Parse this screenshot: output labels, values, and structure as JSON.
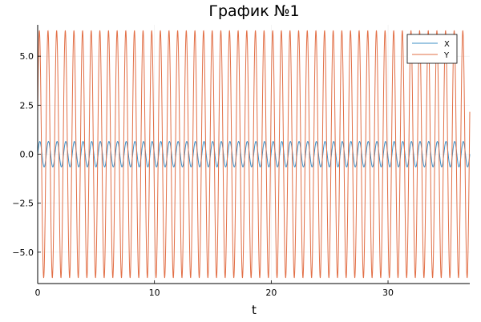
{
  "chart_data": {
    "type": "line",
    "title": "График №1",
    "xlabel": "t",
    "ylabel": "",
    "xlim": [
      0,
      37
    ],
    "ylim": [
      -6.6,
      6.6
    ],
    "xticks": [
      0,
      10,
      20,
      30
    ],
    "xtick_labels": [
      "0",
      "10",
      "20",
      "30"
    ],
    "yticks": [
      -5.0,
      -2.5,
      0.0,
      2.5,
      5.0
    ],
    "ytick_labels": [
      "−5.0",
      "−2.5",
      "0.0",
      "2.5",
      "5.0"
    ],
    "grid": true,
    "legend_position": "top-right",
    "series": [
      {
        "name": "X",
        "color": "#3d8fc6",
        "kind": "sinusoid",
        "amplitude": 0.65,
        "cycles": 50,
        "phase": 0.0,
        "t_start": 0,
        "t_end": 37
      },
      {
        "name": "Y",
        "color": "#e26f46",
        "kind": "sinusoid",
        "amplitude": 6.3,
        "cycles": 50,
        "phase": 0.35,
        "t_start": 0,
        "t_end": 37
      }
    ]
  }
}
